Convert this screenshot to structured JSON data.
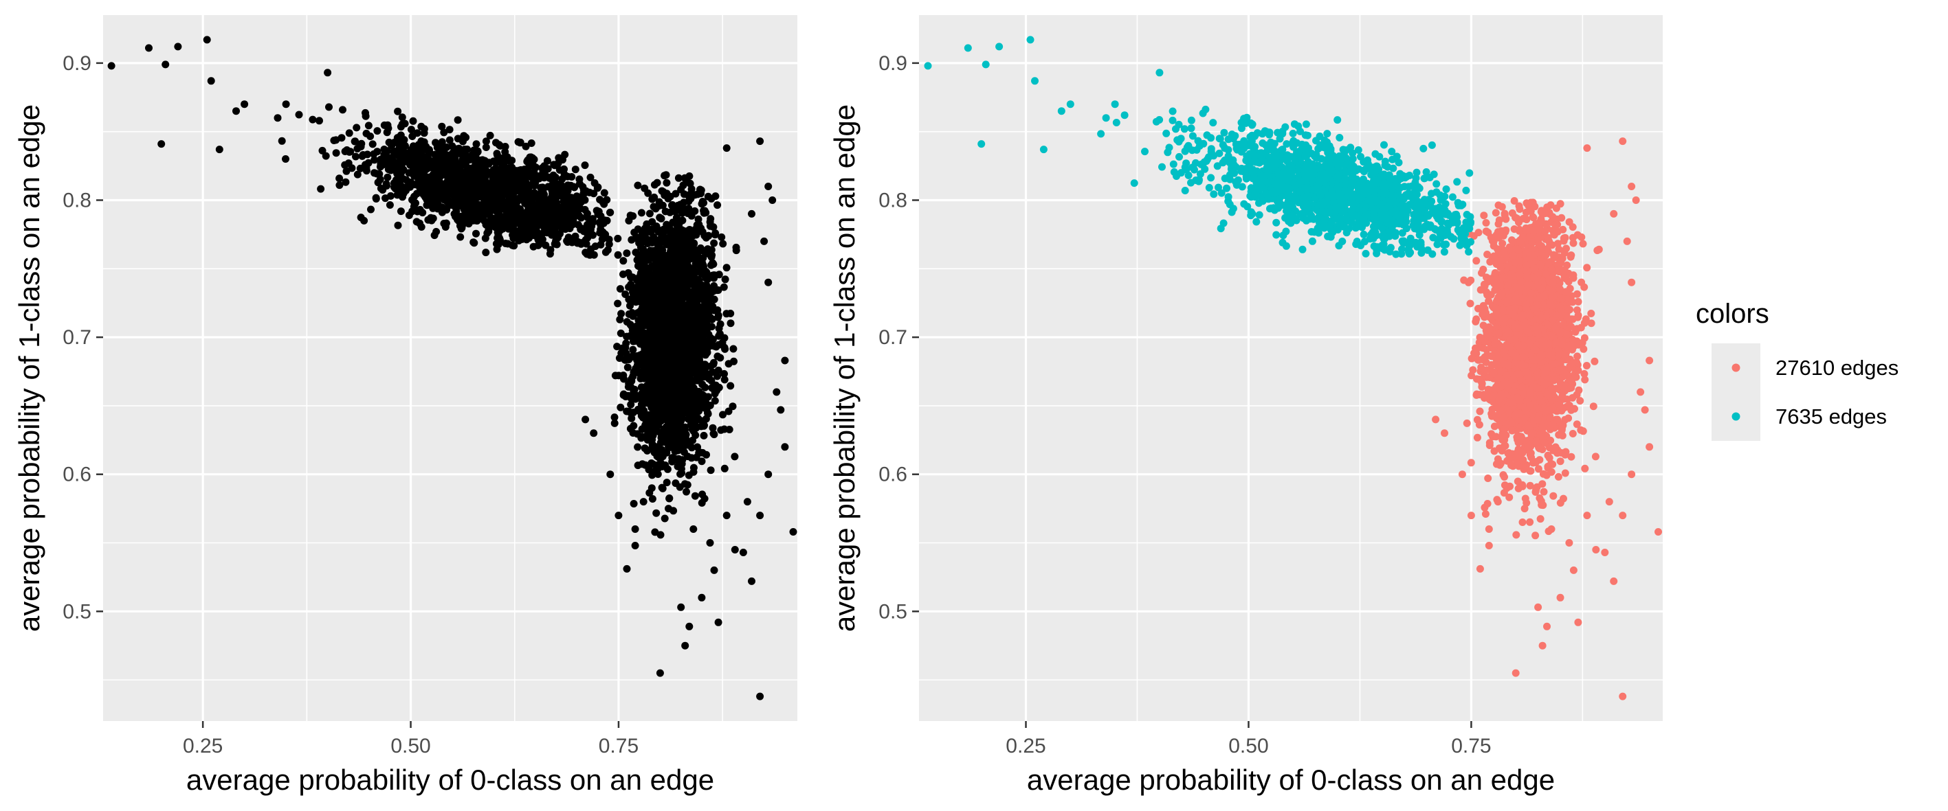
{
  "chart_data": [
    {
      "type": "scatter",
      "panel": "left",
      "xlabel": "average probability of 0-class on an edge",
      "ylabel": "average probability of 1-class on an edge",
      "xlim": [
        0.13,
        0.965
      ],
      "ylim": [
        0.42,
        0.935
      ],
      "x_ticks": [
        0.25,
        0.5,
        0.75
      ],
      "x_tick_labels": [
        "0.25",
        "0.50",
        "0.75"
      ],
      "y_ticks": [
        0.5,
        0.6,
        0.7,
        0.8,
        0.9
      ],
      "y_tick_labels": [
        "0.5",
        "0.6",
        "0.7",
        "0.8",
        "0.9"
      ],
      "grid": true,
      "legend": "none",
      "point_color": "#000000",
      "series": [
        {
          "clusters": [
            {
              "count": 1500,
              "mean": [
                0.6,
                0.805
              ],
              "sd": [
                0.08,
                0.022
              ],
              "corr": -0.65,
              "clip": {
                "x": [
                  0.33,
                  0.74
                ],
                "y": [
                  0.76,
                  0.87
                ]
              }
            },
            {
              "count": 2600,
              "mean": [
                0.815,
                0.7
              ],
              "sd": [
                0.025,
                0.045
              ],
              "corr": 0.0,
              "clip": {
                "x": [
                  0.74,
                  0.91
                ],
                "y": [
                  0.55,
                  0.82
                ]
              }
            }
          ],
          "points": [
            [
              0.14,
              0.898
            ],
            [
              0.185,
              0.911
            ],
            [
              0.205,
              0.899
            ],
            [
              0.22,
              0.912
            ],
            [
              0.2,
              0.841
            ],
            [
              0.255,
              0.917
            ],
            [
              0.26,
              0.887
            ],
            [
              0.27,
              0.837
            ],
            [
              0.29,
              0.865
            ],
            [
              0.3,
              0.87
            ],
            [
              0.34,
              0.86
            ],
            [
              0.35,
              0.87
            ],
            [
              0.4,
              0.893
            ],
            [
              0.92,
              0.843
            ],
            [
              0.88,
              0.838
            ],
            [
              0.93,
              0.81
            ],
            [
              0.935,
              0.8
            ],
            [
              0.95,
              0.683
            ],
            [
              0.945,
              0.647
            ],
            [
              0.96,
              0.558
            ],
            [
              0.92,
              0.57
            ],
            [
              0.9,
              0.543
            ],
            [
              0.89,
              0.545
            ],
            [
              0.86,
              0.55
            ],
            [
              0.865,
              0.53
            ],
            [
              0.85,
              0.51
            ],
            [
              0.825,
              0.503
            ],
            [
              0.835,
              0.489
            ],
            [
              0.83,
              0.475
            ],
            [
              0.87,
              0.492
            ],
            [
              0.8,
              0.455
            ],
            [
              0.92,
              0.438
            ],
            [
              0.91,
              0.522
            ],
            [
              0.76,
              0.531
            ],
            [
              0.77,
              0.56
            ],
            [
              0.75,
              0.57
            ],
            [
              0.74,
              0.6
            ],
            [
              0.71,
              0.64
            ],
            [
              0.72,
              0.63
            ],
            [
              0.77,
              0.548
            ],
            [
              0.78,
              0.58
            ],
            [
              0.79,
              0.59
            ],
            [
              0.81,
              0.575
            ],
            [
              0.84,
              0.56
            ],
            [
              0.88,
              0.57
            ],
            [
              0.905,
              0.58
            ],
            [
              0.93,
              0.6
            ],
            [
              0.95,
              0.62
            ],
            [
              0.94,
              0.66
            ],
            [
              0.93,
              0.74
            ],
            [
              0.925,
              0.77
            ],
            [
              0.91,
              0.79
            ]
          ]
        }
      ]
    },
    {
      "type": "scatter",
      "panel": "right",
      "xlabel": "average probability of 0-class on an edge",
      "ylabel": "average probability of 1-class on an edge",
      "xlim": [
        0.13,
        0.965
      ],
      "ylim": [
        0.42,
        0.935
      ],
      "x_ticks": [
        0.25,
        0.5,
        0.75
      ],
      "x_tick_labels": [
        "0.25",
        "0.50",
        "0.75"
      ],
      "y_ticks": [
        0.5,
        0.6,
        0.7,
        0.8,
        0.9
      ],
      "y_tick_labels": [
        "0.5",
        "0.6",
        "0.7",
        "0.8",
        "0.9"
      ],
      "grid": true,
      "legend": "right",
      "legend_title": "colors",
      "series": [
        {
          "name": "27610 edges",
          "color": "#F8766D",
          "clusters": [
            {
              "count": 2600,
              "mean": [
                0.815,
                0.7
              ],
              "sd": [
                0.025,
                0.045
              ],
              "corr": 0.0,
              "clip": {
                "x": [
                  0.74,
                  0.91
                ],
                "y": [
                  0.55,
                  0.8
                ]
              }
            }
          ],
          "points": [
            [
              0.92,
              0.843
            ],
            [
              0.88,
              0.838
            ],
            [
              0.93,
              0.81
            ],
            [
              0.935,
              0.8
            ],
            [
              0.95,
              0.683
            ],
            [
              0.945,
              0.647
            ],
            [
              0.96,
              0.558
            ],
            [
              0.92,
              0.57
            ],
            [
              0.9,
              0.543
            ],
            [
              0.89,
              0.545
            ],
            [
              0.86,
              0.55
            ],
            [
              0.865,
              0.53
            ],
            [
              0.85,
              0.51
            ],
            [
              0.825,
              0.503
            ],
            [
              0.835,
              0.489
            ],
            [
              0.83,
              0.475
            ],
            [
              0.87,
              0.492
            ],
            [
              0.8,
              0.455
            ],
            [
              0.92,
              0.438
            ],
            [
              0.91,
              0.522
            ],
            [
              0.76,
              0.531
            ],
            [
              0.77,
              0.56
            ],
            [
              0.75,
              0.57
            ],
            [
              0.74,
              0.6
            ],
            [
              0.71,
              0.64
            ],
            [
              0.72,
              0.63
            ],
            [
              0.77,
              0.548
            ],
            [
              0.78,
              0.58
            ],
            [
              0.79,
              0.59
            ],
            [
              0.81,
              0.575
            ],
            [
              0.84,
              0.56
            ],
            [
              0.88,
              0.57
            ],
            [
              0.905,
              0.58
            ],
            [
              0.93,
              0.6
            ],
            [
              0.95,
              0.62
            ],
            [
              0.94,
              0.66
            ],
            [
              0.93,
              0.74
            ],
            [
              0.925,
              0.77
            ],
            [
              0.91,
              0.79
            ]
          ]
        },
        {
          "name": "7635 edges",
          "color": "#00BFC4",
          "clusters": [
            {
              "count": 1500,
              "mean": [
                0.6,
                0.805
              ],
              "sd": [
                0.08,
                0.022
              ],
              "corr": -0.65,
              "clip": {
                "x": [
                  0.33,
                  0.75
                ],
                "y": [
                  0.76,
                  0.87
                ]
              }
            }
          ],
          "points": [
            [
              0.14,
              0.898
            ],
            [
              0.185,
              0.911
            ],
            [
              0.205,
              0.899
            ],
            [
              0.22,
              0.912
            ],
            [
              0.2,
              0.841
            ],
            [
              0.255,
              0.917
            ],
            [
              0.26,
              0.887
            ],
            [
              0.27,
              0.837
            ],
            [
              0.29,
              0.865
            ],
            [
              0.3,
              0.87
            ],
            [
              0.34,
              0.86
            ],
            [
              0.35,
              0.87
            ],
            [
              0.4,
              0.893
            ]
          ]
        }
      ]
    }
  ]
}
